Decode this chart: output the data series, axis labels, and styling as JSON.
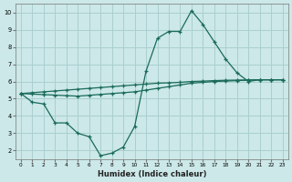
{
  "xlabel": "Humidex (Indice chaleur)",
  "xlim": [
    -0.5,
    23.5
  ],
  "ylim": [
    1.5,
    10.5
  ],
  "xticks": [
    0,
    1,
    2,
    3,
    4,
    5,
    6,
    7,
    8,
    9,
    10,
    11,
    12,
    13,
    14,
    15,
    16,
    17,
    18,
    19,
    20,
    21,
    22,
    23
  ],
  "yticks": [
    2,
    3,
    4,
    5,
    6,
    7,
    8,
    9,
    10
  ],
  "bg_color": "#cce8e8",
  "grid_color": "#aacfcf",
  "line_color": "#1a6b5a",
  "line1": {
    "x": [
      0,
      1,
      2,
      3,
      4,
      5,
      6,
      7,
      8,
      9,
      10,
      11,
      12,
      13,
      14,
      15,
      16,
      17,
      18,
      19,
      20,
      21,
      22,
      23
    ],
    "y": [
      5.3,
      4.8,
      4.7,
      3.6,
      3.6,
      3.0,
      2.8,
      1.7,
      1.85,
      2.2,
      3.4,
      6.6,
      8.5,
      8.9,
      8.9,
      10.1,
      9.3,
      8.3,
      7.3,
      6.5,
      6.0,
      6.1,
      6.1,
      6.1
    ]
  },
  "line2": {
    "x": [
      0,
      1,
      2,
      3,
      4,
      5,
      6,
      7,
      8,
      9,
      10,
      11,
      12,
      13,
      14,
      15,
      16,
      17,
      18,
      19,
      20,
      21,
      22,
      23
    ],
    "y": [
      5.3,
      5.35,
      5.4,
      5.45,
      5.5,
      5.55,
      5.6,
      5.65,
      5.7,
      5.75,
      5.8,
      5.85,
      5.9,
      5.92,
      5.95,
      6.0,
      6.02,
      6.05,
      6.07,
      6.08,
      6.09,
      6.1,
      6.1,
      6.1
    ]
  },
  "line3": {
    "x": [
      0,
      1,
      2,
      3,
      4,
      5,
      6,
      7,
      8,
      9,
      10,
      11,
      12,
      13,
      14,
      15,
      16,
      17,
      18,
      19,
      20,
      21,
      22,
      23
    ],
    "y": [
      5.3,
      5.27,
      5.24,
      5.21,
      5.18,
      5.15,
      5.2,
      5.25,
      5.3,
      5.35,
      5.4,
      5.5,
      5.6,
      5.7,
      5.8,
      5.9,
      5.95,
      6.0,
      6.02,
      6.05,
      6.07,
      6.1,
      6.1,
      6.1
    ]
  }
}
